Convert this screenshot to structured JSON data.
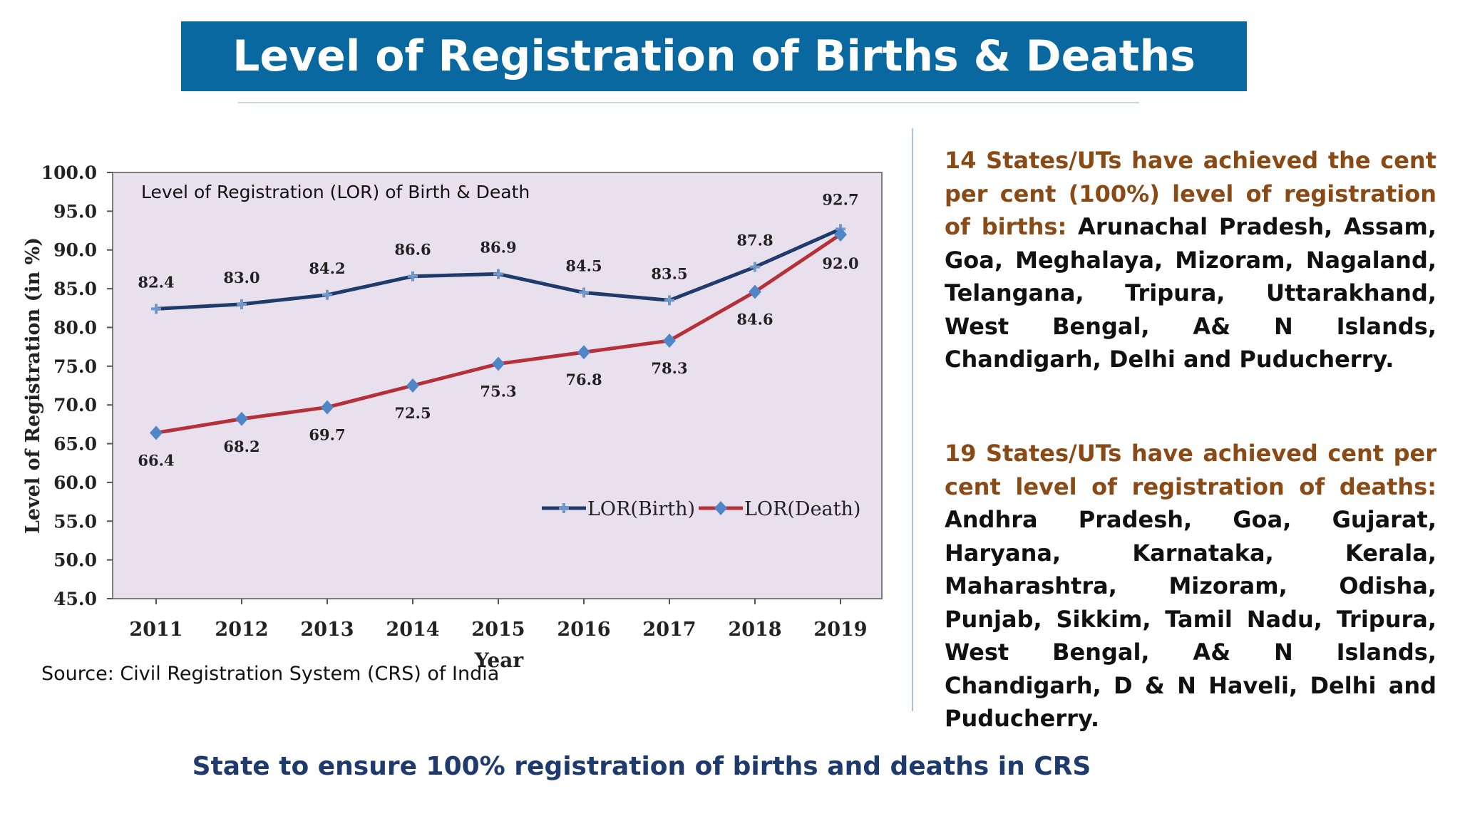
{
  "title": "Level of Registration of Births & Deaths",
  "source": "Source: Civil Registration System (CRS) of India",
  "panel": {
    "births": {
      "lead": "14 States/UTs have achieved the cent per cent (100%) level of registration of births:",
      "list": "Arunachal Pradesh, Assam, Goa, Meghalaya, Mizoram, Nagaland, Telangana, Tripura, Uttarakhand, West Bengal, A& N Islands, Chandigarh, Delhi and Puducherry."
    },
    "deaths": {
      "lead": "19 States/UTs have achieved cent per cent level of registration of deaths:",
      "list": "Andhra Pradesh, Goa, Gujarat, Haryana, Karnataka, Kerala, Maharashtra, Mizoram, Odisha, Punjab, Sikkim, Tamil Nadu, Tripura, West Bengal, A& N Islands, Chandigarh, D & N Haveli, Delhi and Puducherry."
    }
  },
  "footer": "State to ensure 100% registration of births and deaths in CRS",
  "chart_data": {
    "type": "line",
    "title": "Level of Registration (LOR) of Birth & Death",
    "xlabel": "Year",
    "ylabel": "Level of Registration (in %)",
    "categories": [
      "2011",
      "2012",
      "2013",
      "2014",
      "2015",
      "2016",
      "2017",
      "2018",
      "2019"
    ],
    "ylim": [
      45.0,
      100.0
    ],
    "yticks": [
      "100.0",
      "95.0",
      "90.0",
      "85.0",
      "80.0",
      "75.0",
      "70.0",
      "65.0",
      "60.0",
      "55.0",
      "50.0",
      "45.0"
    ],
    "grid": false,
    "legend": "bottom-right",
    "series": [
      {
        "name": "LOR(Birth)",
        "values": [
          82.4,
          83.0,
          84.2,
          86.6,
          86.9,
          84.5,
          83.5,
          87.8,
          92.7
        ],
        "labels": [
          "82.4",
          "83.0",
          "84.2",
          "86.6",
          "86.9",
          "84.5",
          "83.5",
          "87.8",
          "92.7"
        ],
        "color": "#1f3a6b",
        "marker_color": "#6f98c8"
      },
      {
        "name": "LOR(Death)",
        "values": [
          66.4,
          68.2,
          69.7,
          72.5,
          75.3,
          76.8,
          78.3,
          84.6,
          92.0
        ],
        "labels": [
          "66.4",
          "68.2",
          "69.7",
          "72.5",
          "75.3",
          "76.8",
          "78.3",
          "84.6",
          "92.0"
        ],
        "color": "#b5313a",
        "marker_color": "#4f86c8"
      }
    ],
    "plot_background": "#e9e0ee"
  }
}
